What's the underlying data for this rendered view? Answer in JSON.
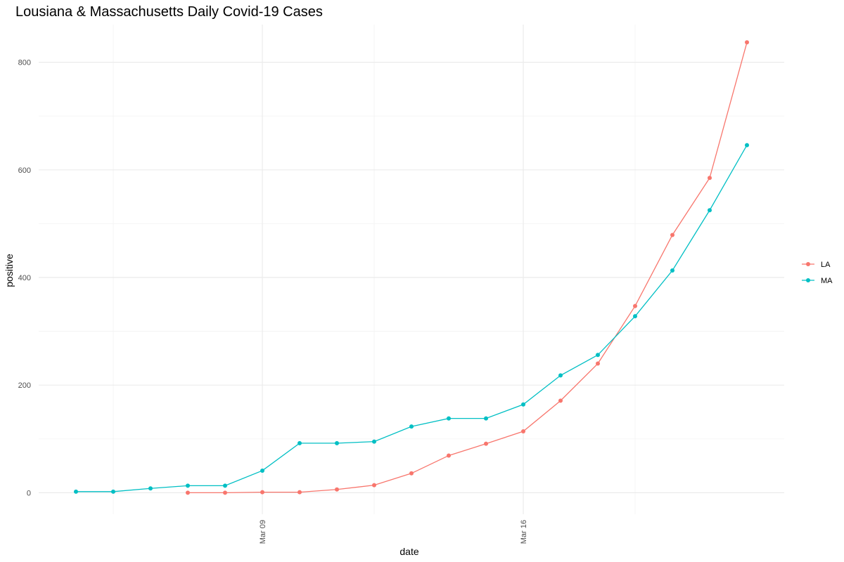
{
  "chart_data": {
    "type": "line",
    "title": "Lousiana & Massachusetts Daily Covid-19 Cases",
    "xlabel": "date",
    "ylabel": "positive",
    "x_axis_type": "date",
    "xlim": [
      "2020-03-03",
      "2020-03-23"
    ],
    "x_ticks": [
      {
        "date": "2020-03-09",
        "label": "Mar 09"
      },
      {
        "date": "2020-03-16",
        "label": "Mar 16"
      }
    ],
    "x_minor_grid": [
      "2020-03-05",
      "2020-03-12",
      "2020-03-19"
    ],
    "ylim": [
      -40,
      870
    ],
    "y_ticks": [
      0,
      200,
      400,
      600,
      800
    ],
    "y_minor_grid": [
      100,
      300,
      500,
      700
    ],
    "grid": true,
    "legend_position": "right",
    "series": [
      {
        "name": "LA",
        "color": "#F8766D",
        "points": [
          {
            "x": "2020-03-07",
            "y": 0
          },
          {
            "x": "2020-03-08",
            "y": 0
          },
          {
            "x": "2020-03-09",
            "y": 1
          },
          {
            "x": "2020-03-10",
            "y": 1
          },
          {
            "x": "2020-03-11",
            "y": 6
          },
          {
            "x": "2020-03-12",
            "y": 14
          },
          {
            "x": "2020-03-13",
            "y": 36
          },
          {
            "x": "2020-03-14",
            "y": 69
          },
          {
            "x": "2020-03-15",
            "y": 91
          },
          {
            "x": "2020-03-16",
            "y": 114
          },
          {
            "x": "2020-03-17",
            "y": 171
          },
          {
            "x": "2020-03-18",
            "y": 240
          },
          {
            "x": "2020-03-19",
            "y": 347
          },
          {
            "x": "2020-03-20",
            "y": 479
          },
          {
            "x": "2020-03-21",
            "y": 585
          },
          {
            "x": "2020-03-22",
            "y": 837
          }
        ]
      },
      {
        "name": "MA",
        "color": "#00BFC4",
        "points": [
          {
            "x": "2020-03-04",
            "y": 2
          },
          {
            "x": "2020-03-05",
            "y": 2
          },
          {
            "x": "2020-03-06",
            "y": 8
          },
          {
            "x": "2020-03-07",
            "y": 13
          },
          {
            "x": "2020-03-08",
            "y": 13
          },
          {
            "x": "2020-03-09",
            "y": 41
          },
          {
            "x": "2020-03-10",
            "y": 92
          },
          {
            "x": "2020-03-11",
            "y": 92
          },
          {
            "x": "2020-03-12",
            "y": 95
          },
          {
            "x": "2020-03-13",
            "y": 123
          },
          {
            "x": "2020-03-14",
            "y": 138
          },
          {
            "x": "2020-03-15",
            "y": 138
          },
          {
            "x": "2020-03-16",
            "y": 164
          },
          {
            "x": "2020-03-17",
            "y": 218
          },
          {
            "x": "2020-03-18",
            "y": 256
          },
          {
            "x": "2020-03-19",
            "y": 328
          },
          {
            "x": "2020-03-20",
            "y": 413
          },
          {
            "x": "2020-03-21",
            "y": 525
          },
          {
            "x": "2020-03-22",
            "y": 646
          }
        ]
      }
    ]
  }
}
